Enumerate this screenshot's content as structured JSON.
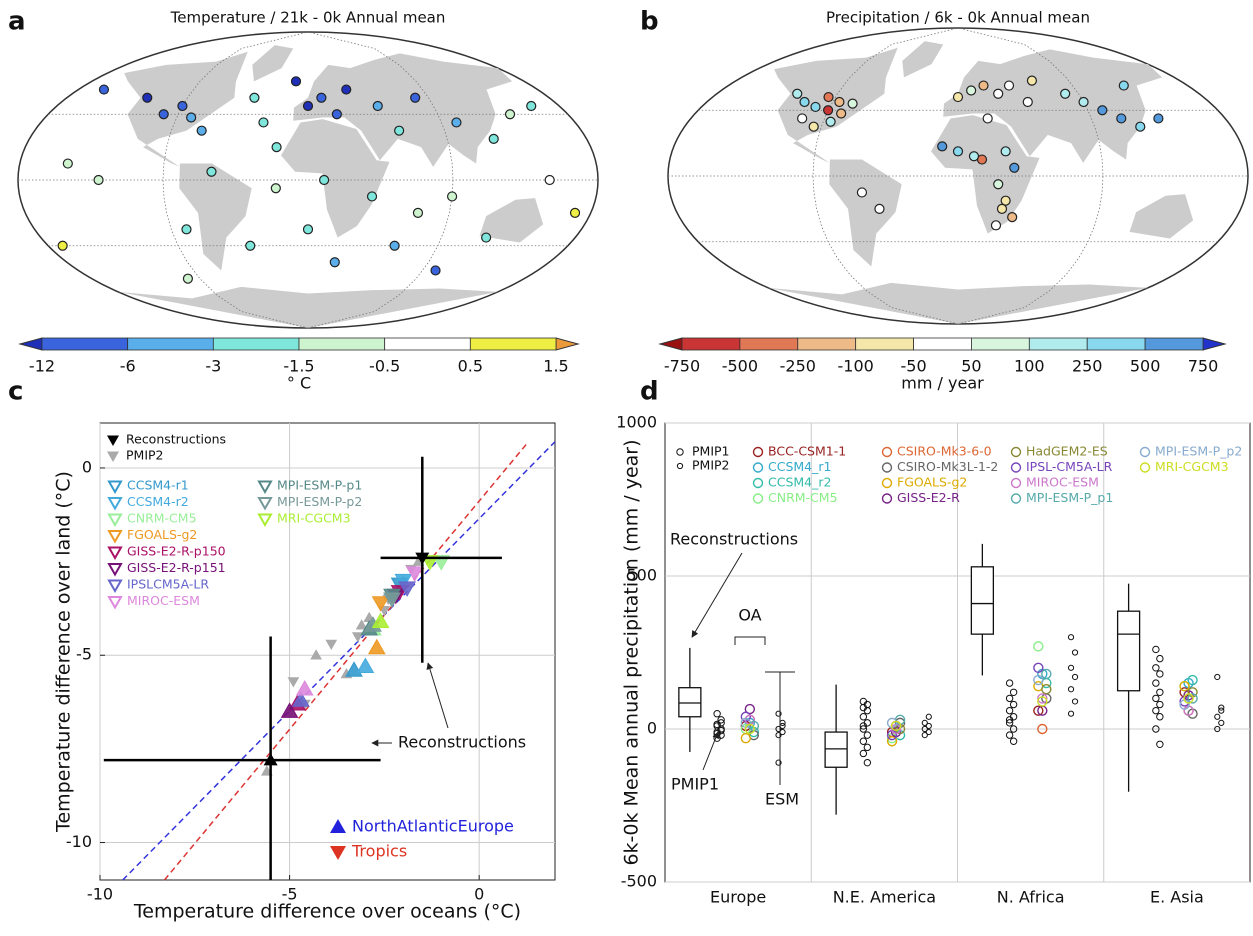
{
  "chart_data": [
    {
      "type": "map",
      "panel": "a",
      "title": "Temperature / 21k - 0k Annual mean",
      "colorbar": {
        "ticks": [
          -12,
          -6,
          -3,
          -1.5,
          -0.5,
          0.5,
          1.5
        ],
        "colors": [
          "#1f2fb8",
          "#3a64dc",
          "#5aaeea",
          "#7fe6dc",
          "#cdf3cf",
          "#ffffff",
          "#eeee44",
          "#eb9a3a"
        ],
        "label": "° C"
      },
      "points": {
        "lon": [
          -160,
          -120,
          -100,
          -90,
          -80,
          -70,
          -40,
          -30,
          -20,
          -10,
          0,
          10,
          20,
          30,
          50,
          60,
          80,
          100,
          120,
          140,
          160,
          -150,
          -130,
          -60,
          -20,
          10,
          40,
          70,
          90,
          150,
          -80,
          -40,
          0,
          60,
          120,
          -100,
          20,
          100,
          170,
          -170
        ],
        "lat": [
          55,
          50,
          40,
          45,
          38,
          30,
          50,
          35,
          20,
          60,
          45,
          50,
          40,
          55,
          45,
          30,
          50,
          35,
          25,
          40,
          45,
          10,
          0,
          5,
          -5,
          0,
          -10,
          -20,
          -10,
          0,
          -30,
          -40,
          -30,
          -40,
          -35,
          -60,
          -50,
          -55,
          -20,
          -40
        ],
        "values": [
          -8,
          -13,
          -9,
          -7,
          -6,
          -4,
          -2,
          -2.5,
          -3,
          -14,
          -15,
          -10,
          -8,
          -13,
          -5,
          -3,
          -7,
          -4,
          -2,
          -1,
          -2,
          -1,
          -0.8,
          -2.5,
          -1.2,
          -2,
          -2.2,
          -1,
          -1.5,
          -0.3,
          -2,
          -3,
          -2.8,
          -4,
          -2,
          -1,
          -5,
          -7,
          0.8,
          1.0
        ]
      }
    },
    {
      "type": "map",
      "panel": "b",
      "title": "Precipitation / 6k - 0k Annual mean",
      "colorbar": {
        "ticks": [
          -750,
          -500,
          -250,
          -100,
          -50,
          50,
          100,
          250,
          500,
          750
        ],
        "colors": [
          "#991111",
          "#c93535",
          "#e07755",
          "#eebb88",
          "#f5e6aa",
          "#ffffff",
          "#d8f5dd",
          "#b0ecee",
          "#88d8ee",
          "#5599dd",
          "#2233cc"
        ],
        "label": "mm / year"
      },
      "points": {
        "lon": [
          -120,
          -110,
          -100,
          -95,
          -90,
          -85,
          -80,
          -75,
          -105,
          -95,
          -85,
          0,
          10,
          20,
          30,
          40,
          50,
          60,
          80,
          90,
          100,
          110,
          120,
          130,
          20,
          30,
          35,
          25,
          15,
          -10,
          0,
          10,
          30,
          35,
          25,
          28,
          135,
          -60,
          -50
        ],
        "lat": [
          50,
          45,
          42,
          48,
          40,
          45,
          38,
          44,
          35,
          30,
          33,
          48,
          52,
          55,
          50,
          55,
          45,
          58,
          50,
          45,
          40,
          35,
          30,
          55,
          35,
          15,
          5,
          -5,
          10,
          18,
          15,
          12,
          -15,
          -25,
          -30,
          -20,
          35,
          -10,
          -20
        ],
        "values": [
          120,
          260,
          300,
          -300,
          -600,
          -200,
          -150,
          80,
          -30,
          -60,
          200,
          -80,
          60,
          -120,
          30,
          20,
          -40,
          -60,
          100,
          150,
          600,
          550,
          400,
          300,
          -20,
          200,
          600,
          60,
          -300,
          500,
          300,
          120,
          -100,
          -200,
          40,
          -60,
          600,
          30,
          -30
        ]
      }
    },
    {
      "type": "scatter",
      "panel": "c",
      "xlabel": "Temperature difference over oceans (°C)",
      "ylabel": "Temperature difference over land (°C)",
      "xlim": [
        -10,
        2
      ],
      "ylim": [
        -11,
        1.2
      ],
      "xticks": [
        -10,
        -5,
        0
      ],
      "yticks": [
        -10,
        -5,
        0
      ],
      "grid": true,
      "reconstructions": {
        "name": "Reconstructions",
        "color": "#000000",
        "x": [
          -5.5,
          -1.5
        ],
        "y": [
          -7.8,
          -2.4
        ],
        "xlo": [
          -9.9,
          -2.6
        ],
        "xhi": [
          -2.6,
          0.6
        ],
        "ylo": [
          -11,
          -5.2
        ],
        "yhi": [
          -4.5,
          0.3
        ]
      },
      "pmip2": {
        "name": "PMIP2",
        "color": "#aaaaaa",
        "x": [
          -5.6,
          -4.9,
          -4.3,
          -3.9,
          -3.5,
          -3.2,
          -2.9,
          -4.6,
          -3.1,
          -2.4,
          -2.0,
          -1.8,
          -1.6,
          -2.5
        ],
        "y": [
          -8.1,
          -5.7,
          -5.0,
          -4.7,
          -5.5,
          -4.5,
          -4.0,
          -6.3,
          -4.2,
          -3.5,
          -3.0,
          -2.7,
          -2.5,
          -3.8
        ]
      },
      "series": [
        {
          "name": "CCSM4-r1",
          "color": "#3399cc",
          "x": [
            -3.3,
            -2.1
          ],
          "y": [
            -5.4,
            -3.1
          ]
        },
        {
          "name": "CCSM4-r2",
          "color": "#44aadd",
          "x": [
            -3.0,
            -2.0
          ],
          "y": [
            -5.3,
            -3.0
          ]
        },
        {
          "name": "CNRM-CM5",
          "color": "#99ee99",
          "x": [
            -2.8,
            -1.0
          ],
          "y": [
            -4.3,
            -2.5
          ]
        },
        {
          "name": "FGOALS-g2",
          "color": "#ee9922",
          "x": [
            -2.7,
            -2.6
          ],
          "y": [
            -4.8,
            -3.6
          ]
        },
        {
          "name": "GISS-E2-R-p150",
          "color": "#aa1166",
          "x": [
            -4.8,
            -2.1
          ],
          "y": [
            -6.3,
            -3.3
          ]
        },
        {
          "name": "GISS-E2-R-p151",
          "color": "#771177",
          "x": [
            -5.0,
            -2.2
          ],
          "y": [
            -6.5,
            -3.4
          ]
        },
        {
          "name": "IPSLCM5A-LR",
          "color": "#6666cc",
          "x": [
            -4.7,
            -1.9
          ],
          "y": [
            -6.2,
            -3.2
          ]
        },
        {
          "name": "MIROC-ESM",
          "color": "#dd88dd",
          "x": [
            -4.6,
            -1.7
          ],
          "y": [
            -5.9,
            -2.8
          ]
        },
        {
          "name": "MPI-ESM-P-p1",
          "color": "#558888",
          "x": [
            -2.9,
            -2.3
          ],
          "y": [
            -4.3,
            -3.4
          ]
        },
        {
          "name": "MPI-ESM-P-p2",
          "color": "#779999",
          "x": [
            -2.8,
            -2.3
          ],
          "y": [
            -4.2,
            -3.5
          ]
        },
        {
          "name": "MRI-CGCM3",
          "color": "#aaee33",
          "x": [
            -2.6,
            -1.3
          ],
          "y": [
            -4.1,
            -2.5
          ]
        }
      ],
      "regions": [
        {
          "name": "NorthAtlanticEurope",
          "color": "#2222dd"
        },
        {
          "name": "Tropics",
          "color": "#dd3322"
        }
      ],
      "fits": [
        {
          "color": "#3333dd",
          "x": [
            -9.4,
            2
          ],
          "y": [
            -11,
            0.7
          ]
        },
        {
          "color": "#dd3333",
          "x": [
            -8.3,
            1.3
          ],
          "y": [
            -11,
            0.7
          ]
        }
      ],
      "annotation": "Reconstructions"
    },
    {
      "type": "box",
      "panel": "d",
      "ylabel": "6k-0k Mean annual precipitation (mm / year)",
      "categories": [
        "Europe",
        "N.E. America",
        "N. Africa",
        "E. Asia"
      ],
      "ylim": [
        -500,
        1000
      ],
      "yticks": [
        -500,
        0,
        500,
        1000
      ],
      "grid": true,
      "boxes": {
        "whislo": [
          -75,
          -280,
          175,
          -205
        ],
        "q1": [
          40,
          -125,
          310,
          125
        ],
        "med": [
          85,
          -65,
          410,
          310
        ],
        "q3": [
          135,
          -10,
          530,
          385
        ],
        "whishi": [
          265,
          145,
          605,
          475
        ]
      },
      "pmip": [
        {
          "name": "PMIP1",
          "values": [
            [
              50,
              30,
              15,
              0,
              -10,
              -20,
              -30,
              -5,
              10,
              20,
              -15
            ],
            [
              90,
              80,
              70,
              60,
              40,
              20,
              0,
              -20,
              -40,
              -60,
              -80,
              -110,
              10
            ],
            [
              150,
              120,
              100,
              80,
              60,
              40,
              20,
              0,
              -20,
              -40,
              30
            ],
            [
              260,
              230,
              200,
              180,
              150,
              120,
              100,
              80,
              60,
              40,
              0,
              -50
            ]
          ]
        },
        {
          "name": "PMIP2",
          "values": [
            [
              50,
              20,
              0,
              -10,
              -20,
              10,
              -110
            ],
            [
              20,
              10,
              0,
              -10,
              -20,
              40
            ],
            [
              300,
              250,
              200,
              170,
              130,
              90,
              50
            ],
            [
              170,
              70,
              40,
              20,
              0,
              60
            ]
          ]
        }
      ],
      "series": [
        {
          "name": "BCC-CSM1-1",
          "color": "#992222",
          "values": [
            10,
            -10,
            60,
            120
          ]
        },
        {
          "name": "CCSM4_r1",
          "color": "#33aacc",
          "values": [
            20,
            10,
            180,
            150
          ]
        },
        {
          "name": "CCSM4_r2",
          "color": "#33bbaa",
          "values": [
            -10,
            -20,
            150,
            160
          ]
        },
        {
          "name": "CNRM-CM5",
          "color": "#88ee88",
          "values": [
            0,
            -30,
            270,
            140
          ]
        },
        {
          "name": "CSIRO-Mk3-6-0",
          "color": "#dd6633",
          "values": [
            30,
            10,
            0,
            60
          ]
        },
        {
          "name": "CSIRO-Mk3L-1-2",
          "color": "#666666",
          "values": [
            -20,
            20,
            100,
            50
          ]
        },
        {
          "name": "FGOALS-g2",
          "color": "#ddaa00",
          "values": [
            -30,
            -40,
            140,
            140
          ]
        },
        {
          "name": "GISS-E2-R",
          "color": "#772288",
          "values": [
            65,
            -10,
            60,
            110
          ]
        },
        {
          "name": "HadGEM2-ES",
          "color": "#888833",
          "values": [
            null,
            0,
            130,
            120
          ]
        },
        {
          "name": "IPSL-CM5A-LR",
          "color": "#7744bb",
          "values": [
            40,
            -20,
            200,
            90
          ]
        },
        {
          "name": "MIROC-ESM",
          "color": "#cc77cc",
          "values": [
            30,
            0,
            100,
            60
          ]
        },
        {
          "name": "MPI-ESM-P_p1",
          "color": "#55aaaa",
          "values": [
            10,
            30,
            180,
            100
          ]
        },
        {
          "name": "MPI-ESM-P_p2",
          "color": "#88aacc",
          "values": [
            20,
            20,
            160,
            80
          ]
        },
        {
          "name": "MRI-CGCM3",
          "color": "#ccdd22",
          "values": [
            0,
            10,
            90,
            100
          ]
        }
      ],
      "annotations": {
        "reconstructions": "Reconstructions",
        "oa": "OA",
        "pmip1": "PMIP1",
        "esm": "ESM"
      }
    }
  ]
}
